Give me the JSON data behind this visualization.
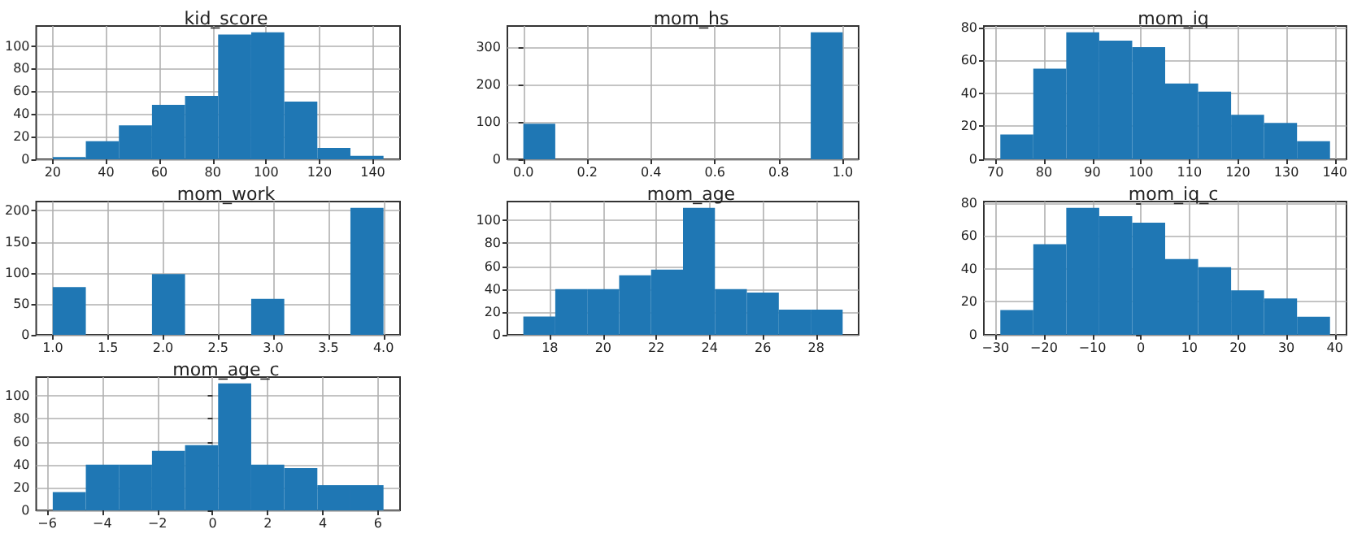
{
  "chart_data": [
    {
      "type": "histogram",
      "title": "kid_score",
      "color": "#1f77b4",
      "grid": true,
      "bins": [
        20,
        32.4,
        44.8,
        57.2,
        69.6,
        82,
        94.4,
        106.8,
        119.2,
        131.6,
        144
      ],
      "values": [
        2,
        16,
        30,
        48,
        56,
        110,
        112,
        51,
        10,
        3
      ],
      "xlim": [
        13.8,
        150.2
      ],
      "ylim": [
        0,
        117.6
      ],
      "xticks": [
        20,
        40,
        60,
        80,
        100,
        120,
        140
      ],
      "yticks": [
        0,
        20,
        40,
        60,
        80,
        100
      ]
    },
    {
      "type": "histogram",
      "title": "mom_hs",
      "color": "#1f77b4",
      "grid": true,
      "bins": [
        0,
        0.1,
        0.2,
        0.3,
        0.4,
        0.5,
        0.6,
        0.7,
        0.8,
        0.9,
        1
      ],
      "values": [
        95,
        0,
        0,
        0,
        0,
        0,
        0,
        0,
        0,
        340
      ],
      "xlim": [
        -0.05,
        1.05
      ],
      "ylim": [
        0,
        357
      ],
      "xticks": [
        {
          "value": 0,
          "label": "0.0"
        },
        0.2,
        0.4,
        0.6,
        0.8,
        {
          "value": 1,
          "label": "1.0"
        }
      ],
      "yticks": [
        0,
        100,
        200,
        300
      ]
    },
    {
      "type": "histogram",
      "title": "mom_iq",
      "color": "#1f77b4",
      "grid": true,
      "bins": [
        71,
        77.8,
        84.6,
        91.4,
        98.2,
        105,
        111.8,
        118.6,
        125.4,
        132.2,
        139
      ],
      "values": [
        15,
        55,
        77,
        72,
        68,
        46,
        41,
        27,
        22,
        11
      ],
      "xlim": [
        67.6,
        142.4
      ],
      "ylim": [
        0,
        80.85
      ],
      "xticks": [
        70,
        80,
        90,
        100,
        110,
        120,
        130,
        140
      ],
      "yticks": [
        0,
        20,
        40,
        60,
        80
      ]
    },
    {
      "type": "histogram",
      "title": "mom_work",
      "color": "#1f77b4",
      "grid": true,
      "bins": [
        1,
        1.3,
        1.6,
        1.9,
        2.2,
        2.5,
        2.8,
        3.1,
        3.4,
        3.7,
        4
      ],
      "values": [
        77,
        0,
        0,
        98,
        0,
        0,
        58,
        0,
        0,
        205
      ],
      "xlim": [
        0.85,
        4.15
      ],
      "ylim": [
        0,
        215
      ],
      "xticks": [
        {
          "value": 1,
          "label": "1.0"
        },
        1.5,
        {
          "value": 2,
          "label": "2.0"
        },
        2.5,
        {
          "value": 3,
          "label": "3.0"
        },
        3.5,
        {
          "value": 4,
          "label": "4.0"
        }
      ],
      "yticks": [
        0,
        50,
        100,
        150,
        200
      ]
    },
    {
      "type": "histogram",
      "title": "mom_age",
      "color": "#1f77b4",
      "grid": true,
      "bins": [
        17,
        18.2,
        19.4,
        20.6,
        21.8,
        23,
        24.2,
        25.4,
        26.6,
        27.8,
        29
      ],
      "values": [
        16,
        40,
        40,
        52,
        57,
        111,
        40,
        37,
        22,
        22
      ],
      "xlim": [
        16.4,
        29.6
      ],
      "ylim": [
        0,
        116.5
      ],
      "xticks": [
        18,
        20,
        22,
        24,
        26,
        28
      ],
      "yticks": [
        0,
        20,
        40,
        60,
        80,
        100
      ]
    },
    {
      "type": "histogram",
      "title": "mom_iq_c",
      "color": "#1f77b4",
      "grid": true,
      "bins": [
        -29,
        -22.2,
        -15.4,
        -8.6,
        -1.8,
        5,
        11.8,
        18.6,
        25.4,
        32.2,
        39
      ],
      "values": [
        15,
        55,
        77,
        72,
        68,
        46,
        41,
        27,
        22,
        11
      ],
      "xlim": [
        -32.4,
        42.4
      ],
      "ylim": [
        0,
        80.85
      ],
      "xticks": [
        {
          "value": -30,
          "label": "−30"
        },
        {
          "value": -20,
          "label": "−20"
        },
        {
          "value": -10,
          "label": "−10"
        },
        0,
        10,
        20,
        30,
        40
      ],
      "yticks": [
        0,
        20,
        40,
        60,
        80
      ]
    },
    {
      "type": "histogram",
      "title": "mom_age_c",
      "color": "#1f77b4",
      "grid": true,
      "bins": [
        -5.8,
        -4.6,
        -3.4,
        -2.2,
        -1,
        0.2,
        1.4,
        2.6,
        3.8,
        5,
        6.2
      ],
      "values": [
        16,
        40,
        40,
        52,
        57,
        111,
        40,
        37,
        22,
        22
      ],
      "xlim": [
        -6.4,
        6.8
      ],
      "ylim": [
        0,
        116.5
      ],
      "xticks": [
        {
          "value": -6,
          "label": "−6"
        },
        {
          "value": -4,
          "label": "−4"
        },
        {
          "value": -2,
          "label": "−2"
        },
        0,
        2,
        4,
        6
      ],
      "yticks": [
        0,
        20,
        40,
        60,
        80,
        100
      ]
    }
  ]
}
